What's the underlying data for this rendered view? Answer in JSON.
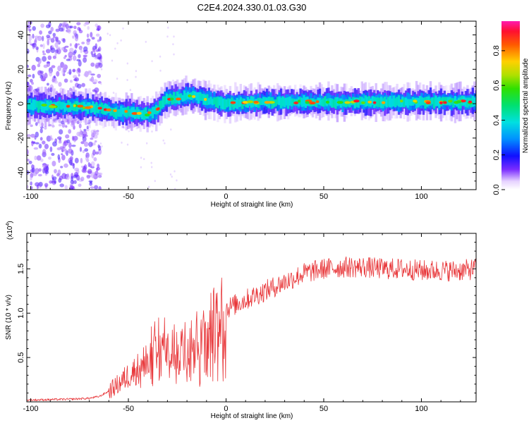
{
  "title": "C2E4.2024.330.01.03.G30",
  "chart_data": [
    {
      "type": "heatmap",
      "xlabel": "Height of straight line (km)",
      "ylabel": "Frequency (Hz)",
      "xlim": [
        -102,
        128
      ],
      "ylim": [
        -50,
        48
      ],
      "xticks": [
        -100,
        -50,
        0,
        50,
        100
      ],
      "yticks": [
        -40,
        -20,
        0,
        20,
        40
      ],
      "colorbar": {
        "label": "Normalized spectral amplitude",
        "range": [
          0.0,
          0.97
        ],
        "ticks": [
          0.0,
          0.2,
          0.4,
          0.6,
          0.8
        ]
      },
      "ridge": {
        "x": [
          -100,
          -90,
          -80,
          -70,
          -60,
          -55,
          -50,
          -45,
          -40,
          -35,
          -32,
          -30,
          -25,
          -20,
          -15,
          -10,
          -5,
          0,
          20,
          50,
          80,
          100,
          128
        ],
        "y": [
          -1,
          -1.5,
          -1.5,
          -2,
          -4,
          -5,
          -5,
          -6,
          -6,
          -3,
          2,
          3,
          3,
          5,
          4,
          2,
          1,
          0,
          1,
          1,
          1,
          1,
          1
        ]
      }
    },
    {
      "type": "line",
      "xlabel": "Height of straight line (km)",
      "ylabel": "SNR (10 * v/v)",
      "y_multiplier": "(x10^4)",
      "xlim": [
        -102,
        128
      ],
      "ylim": [
        0,
        1.9
      ],
      "xticks": [
        -100,
        -50,
        0,
        50,
        100
      ],
      "yticks": [
        0.5,
        1.0,
        1.5
      ],
      "color": "#e8373a",
      "envelope": {
        "x": [
          -102,
          -80,
          -70,
          -65,
          -60,
          -55,
          -50,
          -45,
          -40,
          -35,
          -30,
          -25,
          -20,
          -15,
          -10,
          -5,
          0,
          10,
          20,
          30,
          40,
          50,
          60,
          70,
          80,
          90,
          100,
          110,
          120,
          128
        ],
        "y": [
          0.02,
          0.03,
          0.04,
          0.06,
          0.12,
          0.2,
          0.3,
          0.38,
          0.55,
          0.72,
          0.65,
          0.6,
          0.85,
          0.8,
          0.88,
          0.95,
          1.05,
          1.15,
          1.25,
          1.35,
          1.45,
          1.5,
          1.52,
          1.52,
          1.5,
          1.5,
          1.48,
          1.48,
          1.48,
          1.5
        ]
      }
    }
  ]
}
